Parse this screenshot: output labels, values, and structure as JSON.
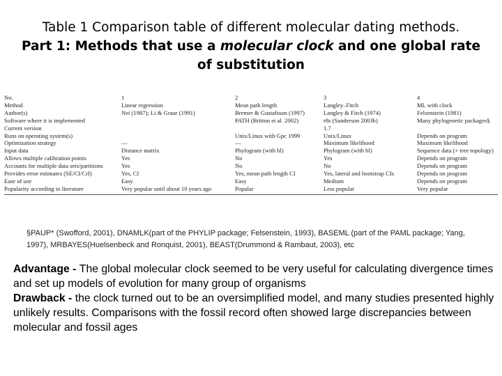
{
  "title": {
    "line1": "Table 1 Comparison table of different molecular dating methods.",
    "part_prefix": "Part 1: Methods that use a ",
    "part_italic": "molecular clock",
    "part_suffix": " and one global rate",
    "line3": "of substitution"
  },
  "table": {
    "rows": [
      [
        "No.",
        "1",
        "2",
        "3",
        "4"
      ],
      [
        "Method",
        "Linear regression",
        "Mean path length",
        "Langley–Fitch",
        "ML with clock"
      ],
      [
        "Author(s)",
        "Nei (1987); Li & Graur (1991)",
        "Bremer & Gustafsson (1997)",
        "Langley & Fitch (1974)",
        "Felsenstein (1981)"
      ],
      [
        "Software where it is implemented",
        "",
        "PATH (Britton et al. 2002)",
        "r8s (Sanderson 2003b)",
        "Many phylogenetic packages§"
      ],
      [
        "Current version",
        "",
        "",
        "1.7",
        ""
      ],
      [
        "Runs on operating system(s)",
        "",
        "Unix/Linux with Gpc 1999",
        "Unix/Linux",
        "Depends on program"
      ],
      [
        "Optimization strategy",
        "—",
        "—",
        "Maximum likelihood",
        "Maximum likelihood"
      ],
      [
        "Input data",
        "Distance matrix",
        "Phylogram (with bl)",
        "Phylogram (with bl)",
        "Sequence data (+ tree topology)"
      ],
      [
        "Allows multiple calibration points",
        "Yes",
        "No",
        "Yes",
        "Depends on program"
      ],
      [
        "Accounts for multiple data sets/partitions",
        "Yes",
        "No",
        "No",
        "Depends on program"
      ],
      [
        "Provides error estimates (SE/CI/CrI)",
        "Yes, CI",
        "Yes, mean path length CI",
        "Yes, lateral and bootstrap CIs",
        "Depends on program"
      ],
      [
        "Ease of use",
        "Easy",
        "Easy",
        "Medium",
        "Depends on program"
      ],
      [
        "Popularity according to literature",
        "Very popular until about 10 years ago",
        "Popular",
        "Less popular",
        "Very popular"
      ]
    ]
  },
  "footnote": "§PAUP* (Swofford, 2001), DNAMLK(part of the PHYLIP package; Felsenstein, 1993), BASEML (part of the PAML package; Yang, 1997), MRBAYES(Huelsenbeck and Ronquist, 2001), BEAST(Drummond & Rambaut, 2003), etc",
  "advantage": {
    "label": "Advantage - ",
    "text": "The global molecular clock seemed to be very useful for calculating divergence times and set up models of evolution for many group of organisms"
  },
  "drawback": {
    "label": "Drawback - ",
    "text": "the clock turned out to be an oversimplified model, and many studies presented highly unlikely results. Comparisons with the fossil record often showed large discrepancies between molecular and fossil ages"
  }
}
